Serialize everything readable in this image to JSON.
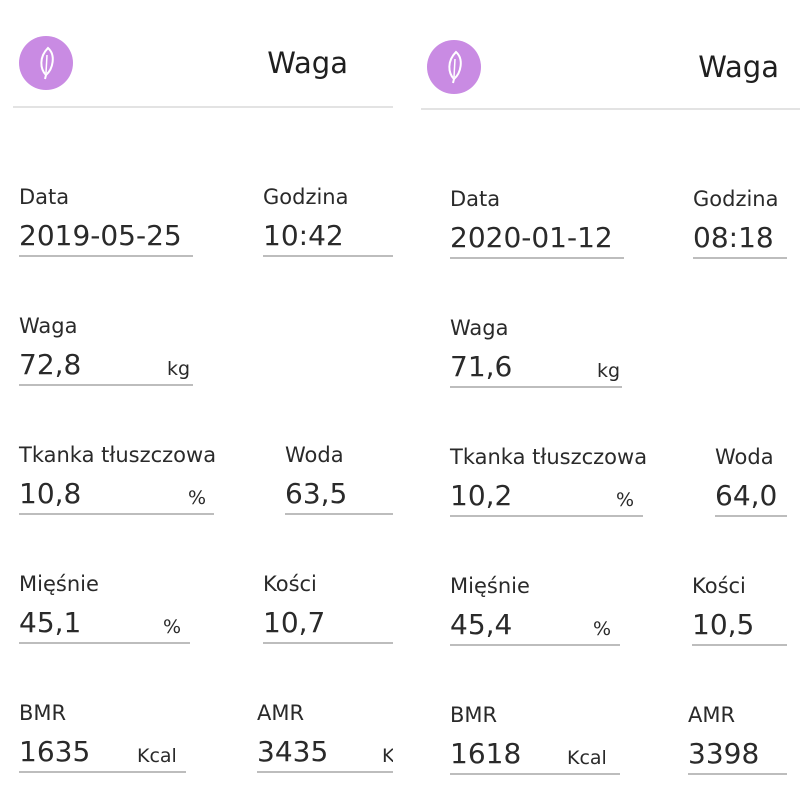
{
  "panels": [
    {
      "title": "Waga",
      "logo_icon": "feather-icon",
      "logo_color": "#c98be3",
      "data_label": "Data",
      "data_value": "2019-05-25",
      "time_label": "Godzina",
      "time_value": "10:42",
      "weight_label": "Waga",
      "weight_value": "72,8",
      "weight_unit": "kg",
      "fat_label": "Tkanka tłuszczowa",
      "fat_value": "10,8",
      "fat_unit": "%",
      "water_label": "Woda",
      "water_value": "63,5",
      "muscle_label": "Mięśnie",
      "muscle_value": "45,1",
      "muscle_unit": "%",
      "bone_label": "Kości",
      "bone_value": "10,7",
      "bmr_label": "BMR",
      "bmr_value": "1635",
      "bmr_unit": "Kcal",
      "amr_label": "AMR",
      "amr_value": "3435",
      "amr_unit": "Kcal"
    },
    {
      "title": "Waga",
      "logo_icon": "feather-icon",
      "logo_color": "#c98be3",
      "data_label": "Data",
      "data_value": "2020-01-12",
      "time_label": "Godzina",
      "time_value": "08:18",
      "weight_label": "Waga",
      "weight_value": "71,6",
      "weight_unit": "kg",
      "fat_label": "Tkanka tłuszczowa",
      "fat_value": "10,2",
      "fat_unit": "%",
      "water_label": "Woda",
      "water_value": "64,0",
      "muscle_label": "Mięśnie",
      "muscle_value": "45,4",
      "muscle_unit": "%",
      "bone_label": "Kości",
      "bone_value": "10,5",
      "bmr_label": "BMR",
      "bmr_value": "1618",
      "bmr_unit": "Kcal",
      "amr_label": "AMR",
      "amr_value": "3398"
    }
  ]
}
